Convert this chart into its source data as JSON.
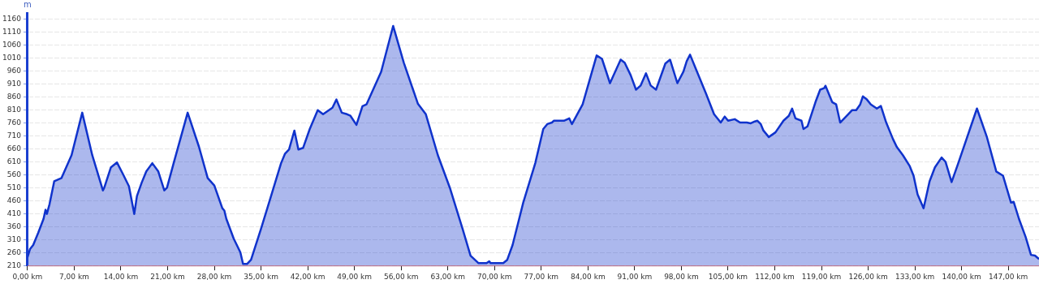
{
  "chart_data": {
    "type": "area",
    "ylabel": "m",
    "x": [
      0,
      0.37,
      0.85,
      1.6,
      2.4,
      2.7,
      2.9,
      3.3,
      4.0,
      5.1,
      6.6,
      8.2,
      9.7,
      11.3,
      11.5,
      12.5,
      13.4,
      14.3,
      15.2,
      16.0,
      16.4,
      17.1,
      17.8,
      18.7,
      19.6,
      20.5,
      20.9,
      21.9,
      24.0,
      25.7,
      27.0,
      28.0,
      29.2,
      29.5,
      29.8,
      30.9,
      31.9,
      32.3,
      32.9,
      33.5,
      35.0,
      36.5,
      38.0,
      38.6,
      39.2,
      40.0,
      40.6,
      41.3,
      42.3,
      43.5,
      44.3,
      45.7,
      46.3,
      47.1,
      47.9,
      48.4,
      49.3,
      50.2,
      50.8,
      53.0,
      54.8,
      56.4,
      58.5,
      59.7,
      61.5,
      63.3,
      65.2,
      66.4,
      67.6,
      68.8,
      69.2,
      69.4,
      71.3,
      71.9,
      72.7,
      74.3,
      76.1,
      77.3,
      77.9,
      78.6,
      78.9,
      80.4,
      81.2,
      81.6,
      83.2,
      85.3,
      86.1,
      87.3,
      88.9,
      89.5,
      90.4,
      91.2,
      91.9,
      92.7,
      93.4,
      94.2,
      95.6,
      96.3,
      97.4,
      98.3,
      98.8,
      99.3,
      100.2,
      101.7,
      102.9,
      103.9,
      104.5,
      105.0,
      106.0,
      106.8,
      107.8,
      108.4,
      109.0,
      109.4,
      109.9,
      110.3,
      111.1,
      112.1,
      113.3,
      114.1,
      114.6,
      115.1,
      116.0,
      116.3,
      116.9,
      118.1,
      118.8,
      119.4,
      119.6,
      120.6,
      121.2,
      121.8,
      123.0,
      123.6,
      124.2,
      124.8,
      125.2,
      125.8,
      126.4,
      127.3,
      127.9,
      128.7,
      129.7,
      130.3,
      131.2,
      132.2,
      132.8,
      133.4,
      134.3,
      135.2,
      136.0,
      137.0,
      137.6,
      138.5,
      139.5,
      142.3,
      143.8,
      145.2,
      146.2,
      147.4,
      147.8,
      148.6,
      149.6,
      150.4,
      151.0,
      151.6
    ],
    "series": [
      {
        "color": "#1033cc",
        "values": [
          242,
          273,
          289,
          336,
          390,
          425,
          409,
          447,
          535,
          548,
          636,
          800,
          636,
          500,
          510,
          589,
          608,
          563,
          516,
          409,
          478,
          529,
          573,
          605,
          573,
          500,
          510,
          605,
          800,
          668,
          548,
          519,
          431,
          422,
          390,
          314,
          261,
          216,
          216,
          232,
          352,
          478,
          605,
          642,
          658,
          731,
          658,
          664,
          737,
          810,
          794,
          819,
          851,
          800,
          794,
          788,
          753,
          825,
          832,
          958,
          1135,
          993,
          835,
          794,
          636,
          510,
          352,
          248,
          219,
          219,
          226,
          219,
          219,
          232,
          289,
          453,
          605,
          737,
          756,
          762,
          769,
          769,
          778,
          756,
          832,
          1021,
          1008,
          914,
          1005,
          993,
          945,
          889,
          905,
          952,
          905,
          889,
          990,
          1005,
          914,
          958,
          999,
          1024,
          967,
          873,
          794,
          762,
          785,
          769,
          775,
          762,
          762,
          759,
          766,
          769,
          756,
          731,
          706,
          724,
          769,
          788,
          816,
          778,
          769,
          737,
          747,
          841,
          889,
          895,
          904,
          841,
          832,
          762,
          794,
          810,
          810,
          832,
          863,
          851,
          832,
          816,
          826,
          762,
          699,
          667,
          636,
          595,
          557,
          485,
          431,
          535,
          589,
          627,
          610,
          532,
          605,
          816,
          705,
          573,
          557,
          453,
          456,
          390,
          320,
          251,
          248,
          235
        ]
      }
    ],
    "xlim": [
      0,
      151.6
    ],
    "ylim": [
      210,
      1185
    ],
    "xticks": [
      {
        "value": 0,
        "label": "0,00 km"
      },
      {
        "value": 7,
        "label": "7,00 km"
      },
      {
        "value": 14,
        "label": "14,00 km"
      },
      {
        "value": 21,
        "label": "21,00 km"
      },
      {
        "value": 28,
        "label": "28,00 km"
      },
      {
        "value": 35,
        "label": "35,00 km"
      },
      {
        "value": 42,
        "label": "42,00 km"
      },
      {
        "value": 49,
        "label": "49,00 km"
      },
      {
        "value": 56,
        "label": "56,00 km"
      },
      {
        "value": 63,
        "label": "63,00 km"
      },
      {
        "value": 70,
        "label": "70,00 km"
      },
      {
        "value": 77,
        "label": "77,00 km"
      },
      {
        "value": 84,
        "label": "84,00 km"
      },
      {
        "value": 91,
        "label": "91,00 km"
      },
      {
        "value": 98,
        "label": "98,00 km"
      },
      {
        "value": 105,
        "label": "105,00 km"
      },
      {
        "value": 112,
        "label": "112,00 km"
      },
      {
        "value": 119,
        "label": "119,00 km"
      },
      {
        "value": 126,
        "label": "126,00 km"
      },
      {
        "value": 133,
        "label": "133,00 km"
      },
      {
        "value": 140,
        "label": "140,00 km"
      },
      {
        "value": 147,
        "label": "147,00 km"
      }
    ],
    "yticks": [
      210,
      260,
      310,
      360,
      410,
      460,
      510,
      560,
      610,
      660,
      710,
      760,
      810,
      860,
      910,
      960,
      1010,
      1060,
      1110,
      1160
    ],
    "grid": "y",
    "legend": false,
    "marker": "none",
    "line_style": "solid"
  }
}
